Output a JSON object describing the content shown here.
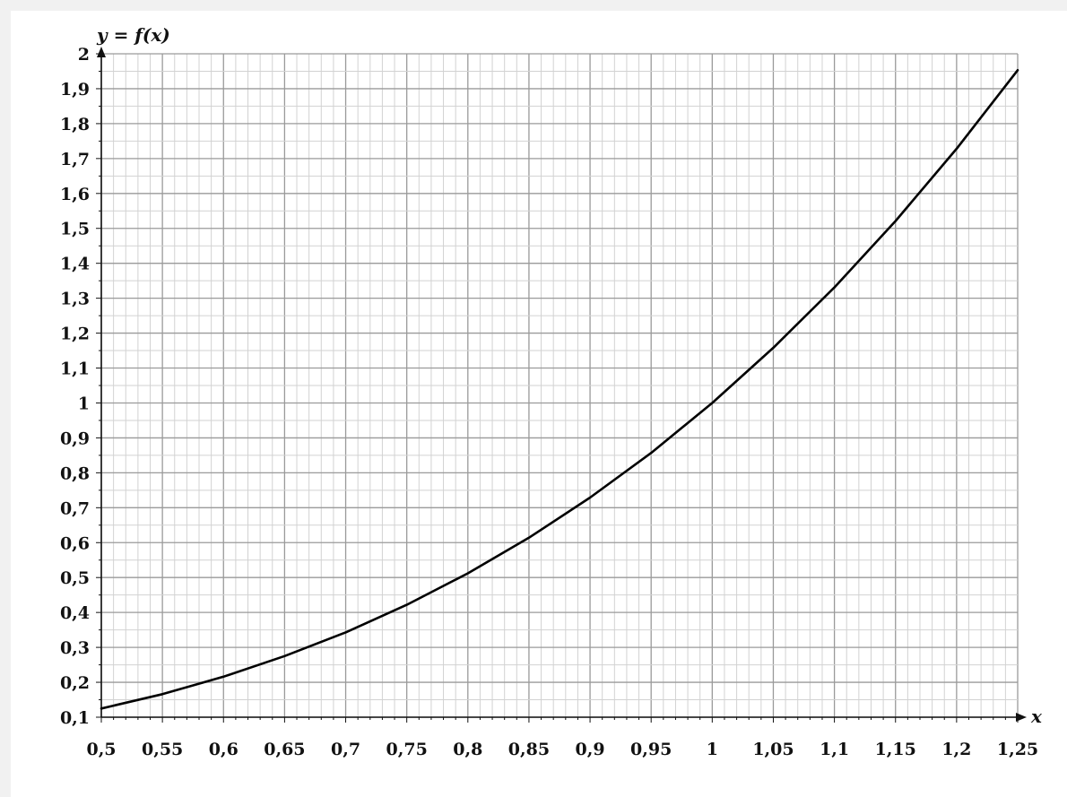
{
  "chart_data": {
    "type": "line",
    "title": "",
    "ylabel": "y = f(x)",
    "xlabel": "x",
    "xlim": [
      0.5,
      1.25
    ],
    "ylim": [
      0.1,
      2.0
    ],
    "x_ticks": [
      "0,5",
      "0,55",
      "0,6",
      "0,65",
      "0,7",
      "0,75",
      "0,8",
      "0,85",
      "0,9",
      "0,95",
      "1",
      "1,05",
      "1,1",
      "1,15",
      "1,2",
      "1,25"
    ],
    "y_ticks": [
      "0,1",
      "0,2",
      "0,3",
      "0,4",
      "0,5",
      "0,6",
      "0,7",
      "0,8",
      "0,9",
      "1",
      "1,1",
      "1,2",
      "1,3",
      "1,4",
      "1,5",
      "1,6",
      "1,7",
      "1,8",
      "1,9",
      "2"
    ],
    "grid": true,
    "minor_grid": true,
    "series": [
      {
        "color": "#000000",
        "x": [
          0.5,
          0.55,
          0.6,
          0.65,
          0.7,
          0.75,
          0.8,
          0.85,
          0.9,
          0.95,
          1.0,
          1.05,
          1.1,
          1.15,
          1.2,
          1.25
        ],
        "y": [
          0.125,
          0.166,
          0.216,
          0.275,
          0.343,
          0.422,
          0.512,
          0.614,
          0.729,
          0.857,
          1.0,
          1.158,
          1.331,
          1.521,
          1.728,
          1.953
        ]
      }
    ]
  }
}
